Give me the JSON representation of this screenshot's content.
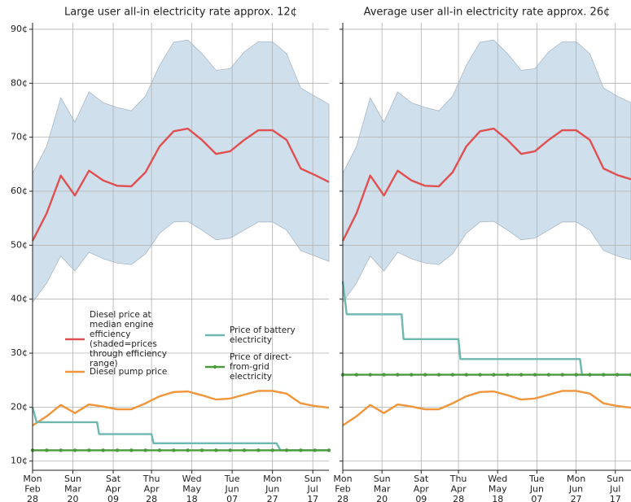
{
  "chart_data": [
    {
      "type": "line",
      "title": "Large user all-in electricity rate approx. 12¢",
      "x": [
        "Feb 28",
        "Mar 07",
        "Mar 14",
        "Mar 21",
        "Mar 28",
        "Apr 04",
        "Apr 11",
        "Apr 18",
        "Apr 25",
        "May 02",
        "May 09",
        "May 16",
        "May 23",
        "May 30",
        "Jun 06",
        "Jun 13",
        "Jun 20",
        "Jun 27",
        "Jul 04",
        "Jul 11",
        "Jul 18",
        "Jul 25"
      ],
      "xlim": [
        "Feb 28",
        "Jul 25"
      ],
      "xticks": [
        {
          "value": "Feb 28",
          "label": [
            "Mon",
            "Feb",
            "28"
          ]
        },
        {
          "value": "Mar 20",
          "label": [
            "Sun",
            "Mar",
            "20"
          ]
        },
        {
          "value": "Apr 09",
          "label": [
            "Sat",
            "Apr",
            "09"
          ]
        },
        {
          "value": "Apr 28",
          "label": [
            "Thu",
            "Apr",
            "28"
          ]
        },
        {
          "value": "May 18",
          "label": [
            "Wed",
            "May",
            "18"
          ]
        },
        {
          "value": "Jun 07",
          "label": [
            "Tue",
            "Jun",
            "07"
          ]
        },
        {
          "value": "Jun 27",
          "label": [
            "Mon",
            "Jun",
            "27"
          ]
        },
        {
          "value": "Jul 17",
          "label": [
            "Sun",
            "Jul",
            "17"
          ]
        }
      ],
      "ylim": [
        8.3,
        91.2
      ],
      "yticks": [
        {
          "value": 10,
          "label": "10¢"
        },
        {
          "value": 20,
          "label": "20¢"
        },
        {
          "value": 30,
          "label": "30¢"
        },
        {
          "value": 40,
          "label": "40¢"
        },
        {
          "value": 50,
          "label": "50¢"
        },
        {
          "value": 60,
          "label": "60¢"
        },
        {
          "value": 70,
          "label": "70¢"
        },
        {
          "value": 80,
          "label": "80¢"
        },
        {
          "value": 90,
          "label": "90¢"
        }
      ],
      "ytick_labels": true,
      "grid": true,
      "legend": "center left",
      "band": {
        "color": "#cfdfec",
        "upper": [
          63.3,
          68.3,
          77.3,
          72.8,
          78.4,
          76.4,
          75.5,
          74.9,
          77.6,
          83.3,
          87.6,
          88,
          85.5,
          82.4,
          82.7,
          85.8,
          87.7,
          87.7,
          85.5,
          79.1,
          77.6,
          76.1
        ],
        "lower": [
          39.4,
          43,
          48,
          45.2,
          48.7,
          47.5,
          46.7,
          46.4,
          48.4,
          52.2,
          54.3,
          54.4,
          52.8,
          51,
          51.3,
          52.8,
          54.3,
          54.3,
          52.8,
          49,
          48,
          47
        ]
      },
      "series": [
        {
          "name": "Diesel price at median engine efficiency (shaded=prices through efficiency range)",
          "color": "#e05050",
          "values": [
            50.8,
            55.9,
            62.9,
            59.2,
            63.8,
            62,
            61,
            60.9,
            63.5,
            68.3,
            71.1,
            71.6,
            69.5,
            66.9,
            67.4,
            69.5,
            71.3,
            71.3,
            69.5,
            64.2,
            63,
            61.7
          ]
        },
        {
          "name": "Diesel pump price",
          "color": "#f0953a",
          "values": [
            16.6,
            18.3,
            20.4,
            18.9,
            20.5,
            20.1,
            19.6,
            19.6,
            20.7,
            22,
            22.8,
            22.9,
            22.2,
            21.4,
            21.6,
            22.3,
            23,
            23,
            22.5,
            20.7,
            20.2,
            19.9
          ]
        },
        {
          "name": "Price of battery electricity",
          "color": "#6fb8b0",
          "x": [
            "Feb 28",
            "Mar 02",
            "Apr 01",
            "Apr 02",
            "Apr 28",
            "Apr 29",
            "Jun 29",
            "Jul 01",
            "Jul 25"
          ],
          "values": [
            20,
            17.2,
            17.2,
            15,
            15,
            13.3,
            13.3,
            12,
            12
          ]
        },
        {
          "name": "Price of direct-from-grid electricity",
          "color": "#4a9a3c",
          "marker": "circle",
          "values": [
            12,
            12,
            12,
            12,
            12,
            12,
            12,
            12,
            12,
            12,
            12,
            12,
            12,
            12,
            12,
            12,
            12,
            12,
            12,
            12,
            12,
            12
          ]
        }
      ]
    },
    {
      "type": "line",
      "title": "Average user all-in electricity rate approx. 26¢",
      "x": [
        "Feb 28",
        "Mar 07",
        "Mar 14",
        "Mar 21",
        "Mar 28",
        "Apr 04",
        "Apr 11",
        "Apr 18",
        "Apr 25",
        "May 02",
        "May 09",
        "May 16",
        "May 23",
        "May 30",
        "Jun 06",
        "Jun 13",
        "Jun 20",
        "Jun 27",
        "Jul 04",
        "Jul 11",
        "Jul 18",
        "Jul 25"
      ],
      "xlim": [
        "Feb 28",
        "Jul 25"
      ],
      "xticks": [
        {
          "value": "Feb 28",
          "label": [
            "Mon",
            "Feb",
            "28"
          ]
        },
        {
          "value": "Mar 20",
          "label": [
            "Sun",
            "Mar",
            "20"
          ]
        },
        {
          "value": "Apr 09",
          "label": [
            "Sat",
            "Apr",
            "09"
          ]
        },
        {
          "value": "Apr 28",
          "label": [
            "Thu",
            "Apr",
            "28"
          ]
        },
        {
          "value": "May 18",
          "label": [
            "Wed",
            "May",
            "18"
          ]
        },
        {
          "value": "Jun 07",
          "label": [
            "Tue",
            "Jun",
            "07"
          ]
        },
        {
          "value": "Jun 27",
          "label": [
            "Mon",
            "Jun",
            "27"
          ]
        },
        {
          "value": "Jul 17",
          "label": [
            "Sun",
            "Jul",
            "17"
          ]
        }
      ],
      "ylim": [
        8.3,
        91.2
      ],
      "yticks": [
        10,
        20,
        30,
        40,
        50,
        60,
        70,
        80,
        90
      ],
      "ytick_labels": false,
      "grid": true,
      "band": {
        "color": "#cfdfec",
        "upper": [
          63.3,
          68.3,
          77.3,
          72.8,
          78.4,
          76.4,
          75.5,
          74.9,
          77.6,
          83.3,
          87.6,
          88,
          85.5,
          82.4,
          82.7,
          85.8,
          87.7,
          87.7,
          85.5,
          79.1,
          77.6,
          76.4
        ],
        "lower": [
          39.4,
          43,
          48,
          45.2,
          48.7,
          47.5,
          46.7,
          46.4,
          48.4,
          52.2,
          54.3,
          54.4,
          52.8,
          51,
          51.3,
          52.8,
          54.3,
          54.3,
          52.8,
          49,
          48,
          47.3
        ]
      },
      "series": [
        {
          "color": "#e05050",
          "values": [
            50.8,
            55.9,
            62.9,
            59.2,
            63.8,
            62,
            61,
            60.9,
            63.5,
            68.3,
            71.1,
            71.6,
            69.5,
            66.9,
            67.4,
            69.5,
            71.3,
            71.3,
            69.5,
            64.2,
            63,
            62.2
          ]
        },
        {
          "color": "#f0953a",
          "values": [
            16.6,
            18.3,
            20.4,
            18.9,
            20.5,
            20.1,
            19.6,
            19.6,
            20.7,
            22,
            22.8,
            22.9,
            22.2,
            21.4,
            21.6,
            22.3,
            23,
            23,
            22.5,
            20.7,
            20.2,
            19.9
          ]
        },
        {
          "color": "#6fb8b0",
          "x": [
            "Feb 28",
            "Mar 02",
            "Mar 30",
            "Mar 31",
            "Apr 28",
            "Apr 29",
            "Jun 29",
            "Jun 30",
            "Jul 25"
          ],
          "values": [
            43.3,
            37.2,
            37.2,
            32.6,
            32.6,
            28.9,
            28.9,
            26,
            26
          ]
        },
        {
          "color": "#4a9a3c",
          "marker": "circle",
          "values": [
            26,
            26,
            26,
            26,
            26,
            26,
            26,
            26,
            26,
            26,
            26,
            26,
            26,
            26,
            26,
            26,
            26,
            26,
            26,
            26,
            26,
            26
          ]
        }
      ]
    }
  ]
}
